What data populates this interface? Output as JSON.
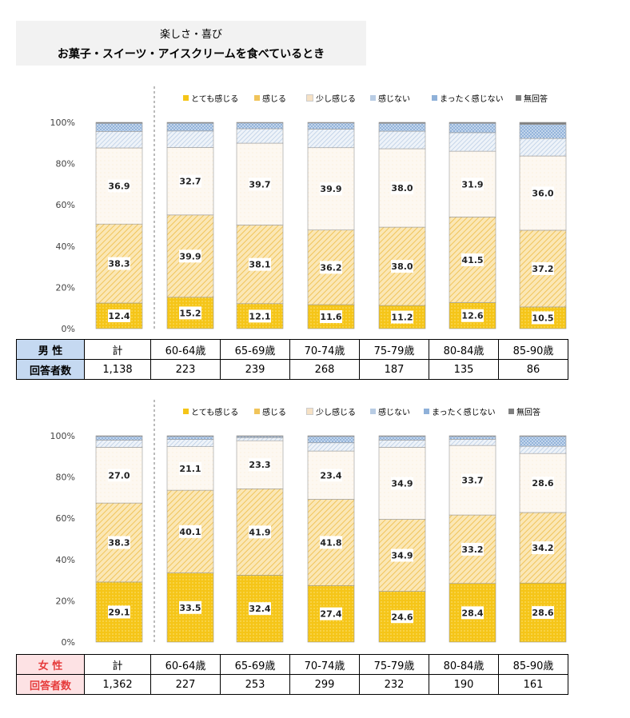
{
  "title": {
    "sub": "楽しさ・喜び",
    "main": "お菓子・スイーツ・アイスクリームを食べているとき"
  },
  "legend": [
    "とても感じる",
    "感じる",
    "少し感じる",
    "感じない",
    "まったく感じない",
    "無回答"
  ],
  "colors": {
    "c1": "#f5c518",
    "c2": "#f0c45a",
    "c3": "#f6e1c4",
    "c4": "#b8cce4",
    "c5": "#8fb1d9",
    "c6": "#7f7f7f"
  },
  "yticks": [
    "0%",
    "20%",
    "40%",
    "60%",
    "80%",
    "100%"
  ],
  "male_table": {
    "label": "男 性",
    "count_label": "回答者数",
    "categories": [
      "計",
      "60-64歳",
      "65-69歳",
      "70-74歳",
      "75-79歳",
      "80-84歳",
      "85-90歳"
    ],
    "counts": [
      "1,138",
      "223",
      "239",
      "268",
      "187",
      "135",
      "86"
    ]
  },
  "female_table": {
    "label": "女 性",
    "count_label": "回答者数",
    "categories": [
      "計",
      "60-64歳",
      "65-69歳",
      "70-74歳",
      "75-79歳",
      "80-84歳",
      "85-90歳"
    ],
    "counts": [
      "1,362",
      "227",
      "253",
      "299",
      "232",
      "190",
      "161"
    ]
  },
  "chart_data": [
    {
      "type": "bar",
      "stacked": true,
      "categories": [
        "計",
        "60-64歳",
        "65-69歳",
        "70-74歳",
        "75-79歳",
        "80-84歳",
        "85-90歳"
      ],
      "ylim": [
        0,
        100
      ],
      "series": [
        {
          "name": "とても感じる",
          "values": [
            12.4,
            15.2,
            12.1,
            11.6,
            11.2,
            12.6,
            10.5
          ],
          "labeled": true
        },
        {
          "name": "感じる",
          "values": [
            38.3,
            39.9,
            38.1,
            36.2,
            38.0,
            41.5,
            37.2
          ],
          "labeled": true
        },
        {
          "name": "少し感じる",
          "values": [
            36.9,
            32.7,
            39.7,
            39.9,
            38.0,
            31.9,
            36.0
          ],
          "labeled": true
        },
        {
          "name": "感じない",
          "values": [
            8.0,
            8.0,
            7.0,
            9.0,
            8.5,
            9.0,
            8.5
          ]
        },
        {
          "name": "まったく感じない",
          "values": [
            3.9,
            3.8,
            2.8,
            3.0,
            3.8,
            4.5,
            6.8
          ]
        },
        {
          "name": "無回答",
          "values": [
            0.5,
            0.4,
            0.3,
            0.3,
            0.5,
            0.5,
            1.0
          ]
        }
      ]
    },
    {
      "type": "bar",
      "stacked": true,
      "categories": [
        "計",
        "60-64歳",
        "65-69歳",
        "70-74歳",
        "75-79歳",
        "80-84歳",
        "85-90歳"
      ],
      "ylim": [
        0,
        100
      ],
      "series": [
        {
          "name": "とても感じる",
          "values": [
            29.1,
            33.5,
            32.4,
            27.4,
            24.6,
            28.4,
            28.6
          ],
          "labeled": true
        },
        {
          "name": "感じる",
          "values": [
            38.3,
            40.1,
            41.9,
            41.8,
            34.9,
            33.2,
            34.2
          ],
          "labeled": true
        },
        {
          "name": "少し感じる",
          "values": [
            27.0,
            21.1,
            23.3,
            23.4,
            34.9,
            33.7,
            28.6
          ],
          "labeled": true
        },
        {
          "name": "感じない",
          "values": [
            3.5,
            3.5,
            1.5,
            4.0,
            3.5,
            3.0,
            3.5
          ]
        },
        {
          "name": "まったく感じない",
          "values": [
            1.8,
            1.5,
            0.6,
            3.1,
            1.8,
            1.4,
            4.8
          ]
        },
        {
          "name": "無回答",
          "values": [
            0.3,
            0.3,
            0.3,
            0.3,
            0.3,
            0.3,
            0.3
          ]
        }
      ]
    }
  ]
}
